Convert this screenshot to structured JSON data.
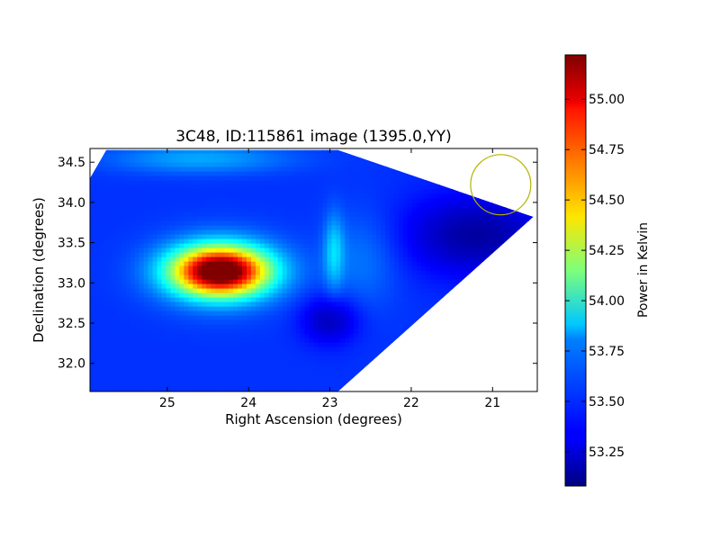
{
  "chart_data": {
    "type": "heatmap",
    "title": "3C48, ID:115861 image (1395.0,YY)",
    "xlabel": "Right Ascension (degrees)",
    "ylabel": "Declination (degrees)",
    "xlim": [
      25.95,
      20.45
    ],
    "ylim": [
      31.65,
      34.67
    ],
    "x_ticks": [
      {
        "value": 25,
        "label": "25"
      },
      {
        "value": 24,
        "label": "24"
      },
      {
        "value": 23,
        "label": "23"
      },
      {
        "value": 22,
        "label": "22"
      },
      {
        "value": 21,
        "label": "21"
      }
    ],
    "y_ticks": [
      {
        "value": 32.0,
        "label": "32.0"
      },
      {
        "value": 32.5,
        "label": "32.5"
      },
      {
        "value": 33.0,
        "label": "33.0"
      },
      {
        "value": 33.5,
        "label": "33.5"
      },
      {
        "value": 34.0,
        "label": "34.0"
      },
      {
        "value": 34.5,
        "label": "34.5"
      }
    ],
    "colorbar": {
      "label": "Power in Kelvin",
      "colormap": "jet",
      "range": [
        53.08,
        55.22
      ],
      "ticks": [
        {
          "value": 53.25,
          "label": "53.25"
        },
        {
          "value": 53.5,
          "label": "53.50"
        },
        {
          "value": 53.75,
          "label": "53.75"
        },
        {
          "value": 54.0,
          "label": "54.00"
        },
        {
          "value": 54.25,
          "label": "54.25"
        },
        {
          "value": 54.5,
          "label": "54.50"
        },
        {
          "value": 54.75,
          "label": "54.75"
        },
        {
          "value": 55.0,
          "label": "55.00"
        }
      ]
    },
    "background_level": 53.45,
    "features": [
      {
        "name": "peak-source",
        "ra": 24.35,
        "dec": 33.15,
        "ra_width": 0.55,
        "dec_width": 0.28,
        "amplitude": 1.65
      },
      {
        "name": "source-halo",
        "ra": 24.35,
        "dec": 33.15,
        "ra_width": 0.75,
        "dec_width": 0.42,
        "amplitude": 0.45
      },
      {
        "name": "north-band",
        "ra": 24.6,
        "dec": 34.55,
        "ra_width": 1.1,
        "dec_width": 0.18,
        "amplitude": 0.25
      },
      {
        "name": "ridge-23",
        "ra": 22.95,
        "dec": 33.4,
        "ra_width": 0.12,
        "dec_width": 0.45,
        "amplitude": 0.3
      },
      {
        "name": "ridge-glow",
        "ra": 22.6,
        "dec": 33.3,
        "ra_width": 0.45,
        "dec_width": 0.6,
        "amplitude": 0.15
      },
      {
        "name": "south-dip",
        "ra": 23.0,
        "dec": 32.55,
        "ra_width": 0.35,
        "dec_width": 0.3,
        "amplitude": -0.25
      },
      {
        "name": "east-wedge-dip",
        "ra": 21.2,
        "dec": 33.6,
        "ra_width": 0.9,
        "dec_width": 0.5,
        "amplitude": -0.3
      }
    ],
    "data_region": [
      {
        "ra": 25.95,
        "dec": 31.65
      },
      {
        "ra": 25.95,
        "dec": 34.3
      },
      {
        "ra": 25.75,
        "dec": 34.65
      },
      {
        "ra": 22.9,
        "dec": 34.65
      },
      {
        "ra": 20.5,
        "dec": 33.82
      },
      {
        "ra": 22.9,
        "dec": 31.65
      }
    ],
    "beam_circle": {
      "ra": 20.9,
      "dec": 34.22,
      "radius_deg": 0.37,
      "color": "#b5b300"
    }
  }
}
